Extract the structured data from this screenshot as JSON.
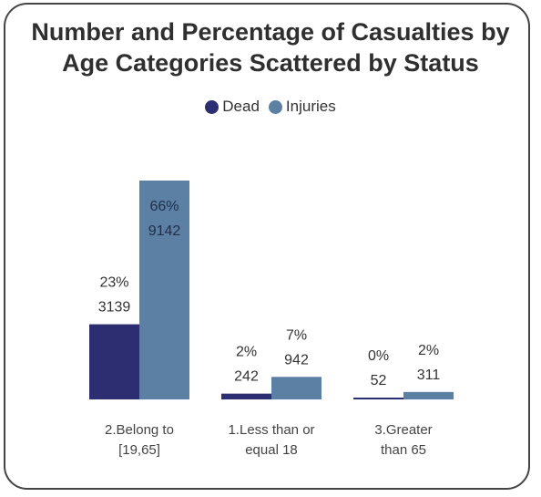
{
  "chart_data": {
    "type": "bar",
    "title_lines": [
      "Number and Percentage of Casualties by",
      "Age Categories Scattered by Status"
    ],
    "xlabel": "",
    "ylabel": "",
    "legend_position": "top-center",
    "grid": false,
    "categories": [
      [
        "2.Belong to",
        "[19,65]"
      ],
      [
        "1.Less than or",
        "equal 18"
      ],
      [
        "3.Greater",
        "than 65"
      ]
    ],
    "series": [
      {
        "name": "Dead",
        "color": "#2d2e72",
        "values": [
          3139,
          242,
          52
        ],
        "percent_labels": [
          "23%",
          "2%",
          "0%"
        ]
      },
      {
        "name": "Injuries",
        "color": "#5b80a4",
        "values": [
          9142,
          942,
          311
        ],
        "percent_labels": [
          "66%",
          "7%",
          "2%"
        ]
      }
    ],
    "ylim": [
      0,
      9142
    ]
  }
}
